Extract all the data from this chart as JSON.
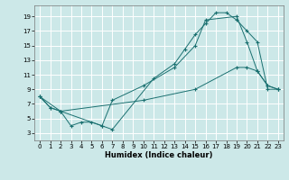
{
  "title": "",
  "xlabel": "Humidex (Indice chaleur)",
  "ylabel": "",
  "bg_color": "#cce8e8",
  "grid_color": "#ffffff",
  "line_color": "#1a7070",
  "xlim": [
    -0.5,
    23.5
  ],
  "ylim": [
    2,
    20.5
  ],
  "xticks": [
    0,
    1,
    2,
    3,
    4,
    5,
    6,
    7,
    8,
    9,
    10,
    11,
    12,
    13,
    14,
    15,
    16,
    17,
    18,
    19,
    20,
    21,
    22,
    23
  ],
  "yticks": [
    3,
    5,
    7,
    9,
    11,
    13,
    15,
    17,
    19
  ],
  "line1_x": [
    0,
    1,
    2,
    3,
    4,
    5,
    6,
    7,
    11,
    13,
    14,
    15,
    16,
    17,
    18,
    19,
    20,
    21,
    22,
    23
  ],
  "line1_y": [
    8,
    6.5,
    6,
    4,
    4.5,
    4.5,
    4,
    3.5,
    10.5,
    12.5,
    14.5,
    16.5,
    18,
    19.5,
    19.5,
    18.5,
    17,
    15.5,
    9,
    9
  ],
  "line2_x": [
    0,
    1,
    2,
    6,
    7,
    10,
    13,
    15,
    16,
    19,
    20,
    21,
    22,
    23
  ],
  "line2_y": [
    8,
    6.5,
    6,
    4,
    7.5,
    9.5,
    12.0,
    15.0,
    18.5,
    19.0,
    15.5,
    11.5,
    9.5,
    9
  ],
  "line3_x": [
    0,
    2,
    10,
    15,
    19,
    20,
    21,
    22,
    23
  ],
  "line3_y": [
    8,
    6,
    7.5,
    9.0,
    12.0,
    12.0,
    11.5,
    9.5,
    9
  ]
}
